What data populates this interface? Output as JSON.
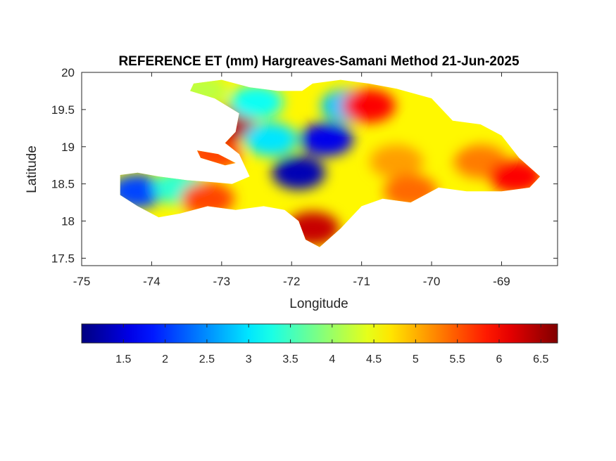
{
  "chart_data": {
    "type": "heatmap",
    "title": "REFERENCE ET (mm) Hargreaves-Samani Method  21-Jun-2025",
    "xlabel": "Longitude",
    "ylabel": "Latitude",
    "xlim": [
      -75,
      -68.2
    ],
    "ylim": [
      17.4,
      20
    ],
    "xticks": [
      -75,
      -74,
      -73,
      -72,
      -71,
      -70,
      -69
    ],
    "yticks": [
      17.5,
      18,
      18.5,
      19,
      19.5,
      20
    ],
    "xtick_labels": [
      "-75",
      "-74",
      "-73",
      "-72",
      "-71",
      "-70",
      "-69"
    ],
    "ytick_labels": [
      "17.5",
      "18",
      "18.5",
      "19",
      "19.5",
      "20"
    ],
    "grid": false,
    "colormap": "jet",
    "colorbar": {
      "location": "bottom",
      "range": [
        1.0,
        6.7
      ],
      "ticks": [
        1.5,
        2,
        2.5,
        3,
        3.5,
        4,
        4.5,
        5,
        5.5,
        6,
        6.5
      ],
      "tick_labels": [
        "1.5",
        "2",
        "2.5",
        "3",
        "3.5",
        "4",
        "4.5",
        "5",
        "5.5",
        "6",
        "6.5"
      ]
    },
    "regions": [
      {
        "lon": -74.2,
        "lat": 18.4,
        "value": 2.1
      },
      {
        "lon": -73.6,
        "lat": 18.45,
        "value": 3.4
      },
      {
        "lon": -73.2,
        "lat": 18.3,
        "value": 5.6
      },
      {
        "lon": -72.9,
        "lat": 19.3,
        "value": 6.4
      },
      {
        "lon": -72.5,
        "lat": 19.6,
        "value": 3.2
      },
      {
        "lon": -73.3,
        "lat": 19.75,
        "value": 4.2
      },
      {
        "lon": -73.1,
        "lat": 18.9,
        "value": 5.6
      },
      {
        "lon": -72.3,
        "lat": 19.1,
        "value": 3.0
      },
      {
        "lon": -71.9,
        "lat": 18.65,
        "value": 1.3
      },
      {
        "lon": -71.5,
        "lat": 19.1,
        "value": 1.6
      },
      {
        "lon": -71.2,
        "lat": 19.55,
        "value": 2.8
      },
      {
        "lon": -70.9,
        "lat": 19.55,
        "value": 6.0
      },
      {
        "lon": -71.7,
        "lat": 17.9,
        "value": 6.3
      },
      {
        "lon": -70.5,
        "lat": 18.8,
        "value": 5.1
      },
      {
        "lon": -69.9,
        "lat": 19.2,
        "value": 4.6
      },
      {
        "lon": -69.3,
        "lat": 18.8,
        "value": 5.3
      },
      {
        "lon": -68.8,
        "lat": 18.6,
        "value": 6.0
      },
      {
        "lon": -70.3,
        "lat": 18.4,
        "value": 5.4
      }
    ]
  }
}
